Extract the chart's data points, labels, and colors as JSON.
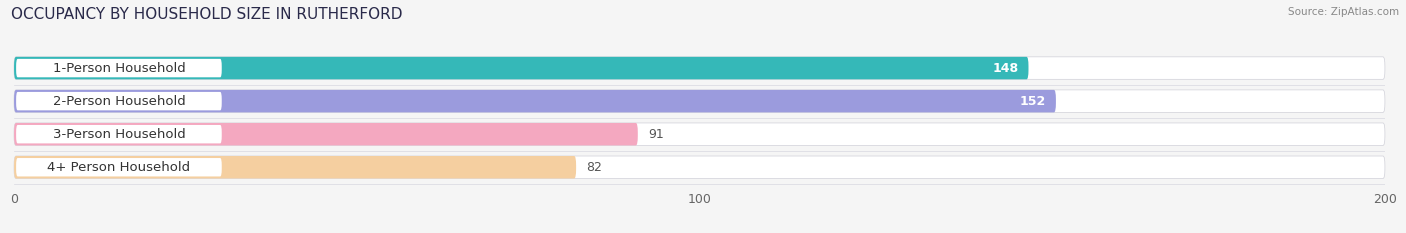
{
  "title": "OCCUPANCY BY HOUSEHOLD SIZE IN RUTHERFORD",
  "source": "Source: ZipAtlas.com",
  "categories": [
    "1-Person Household",
    "2-Person Household",
    "3-Person Household",
    "4+ Person Household"
  ],
  "values": [
    148,
    152,
    91,
    82
  ],
  "bar_colors": [
    "#35b8b8",
    "#9b9bdd",
    "#f4a8c0",
    "#f5cfa0"
  ],
  "xlim": [
    0,
    200
  ],
  "xticks": [
    0,
    100,
    200
  ],
  "background_color": "#f5f5f5",
  "bar_bg_color": "#e8e8ec",
  "title_fontsize": 11,
  "label_fontsize": 9.5,
  "value_fontsize": 9
}
